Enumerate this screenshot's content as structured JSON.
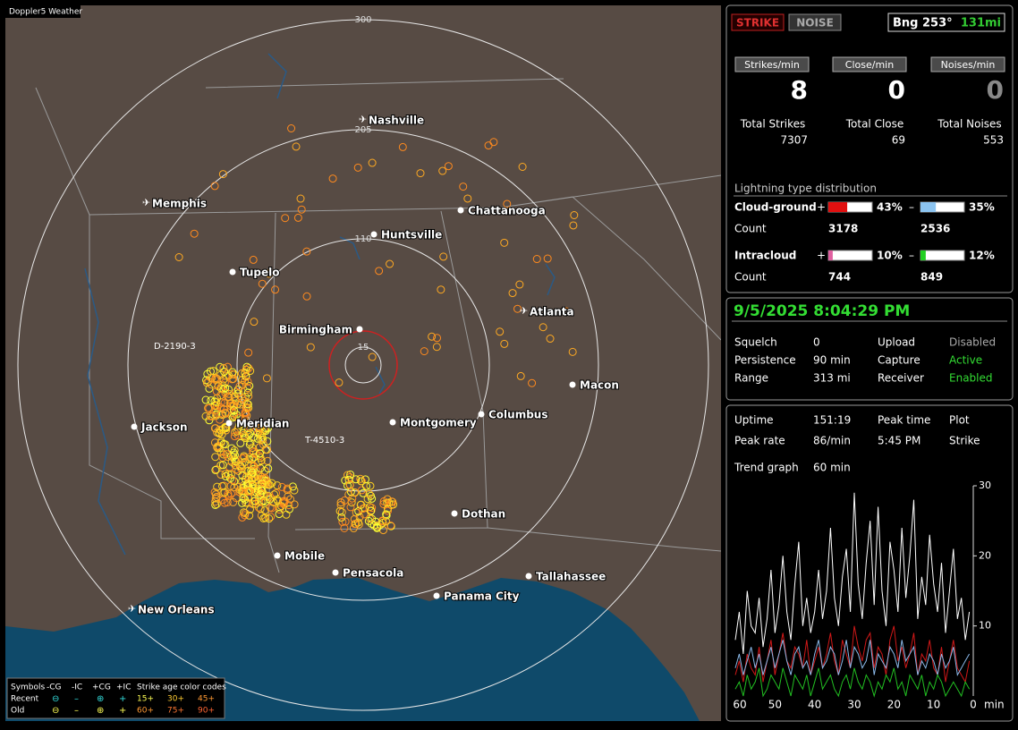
{
  "app_title": "Doppler5 Weather",
  "map": {
    "ring_labels": [
      300,
      205,
      110,
      15
    ],
    "cities": [
      "Nashville",
      "Memphis",
      "Chattanooga",
      "Huntsville",
      "Tupelo",
      "Atlanta",
      "Birmingham",
      "Macon",
      "Jackson",
      "Meridian",
      "Montgomery",
      "Columbus",
      "Dothan",
      "Mobile",
      "Pensacola",
      "Tallahassee",
      "Panama City",
      "New Orleans"
    ],
    "track_labels": [
      "D-2190-3",
      "T-4510-3"
    ],
    "legend": {
      "symbols_label": "Symbols",
      "symbol_headers": [
        "-CG",
        "-IC",
        "+CG",
        "+IC"
      ],
      "age_label": "Strike age color codes",
      "rows": [
        {
          "label": "Recent",
          "ages": [
            "15+",
            "30+",
            "45+"
          ]
        },
        {
          "label": "Old",
          "ages": [
            "60+",
            "75+",
            "90+"
          ]
        }
      ]
    }
  },
  "status": {
    "modes": [
      "STRIKE",
      "NOISE"
    ],
    "bearing": "Bng 253°",
    "distance": "131mi",
    "rates": [
      {
        "label": "Strikes/min",
        "value": 8,
        "total_label": "Total Strikes",
        "total": 7307
      },
      {
        "label": "Close/min",
        "value": 0,
        "total_label": "Total Close",
        "total": 69
      },
      {
        "label": "Noises/min",
        "value": 0,
        "total_label": "Total Noises",
        "total": 553
      }
    ],
    "distribution": {
      "title": "Lightning type distribution",
      "count_label": "Count",
      "rows": [
        {
          "label": "Cloud-ground",
          "pos_sign": "+",
          "pos_pct": 43,
          "pos_pct_label": "43%",
          "neg_sign": "–",
          "neg_pct": 35,
          "neg_pct_label": "35%",
          "pos_count": 3178,
          "neg_count": 2536
        },
        {
          "label": "Intracloud",
          "pos_sign": "+",
          "pos_pct": 10,
          "pos_pct_label": "10%",
          "neg_sign": "–",
          "neg_pct": 12,
          "neg_pct_label": "12%",
          "pos_count": 744,
          "neg_count": 849
        }
      ]
    }
  },
  "clock": {
    "datetime": "9/5/2025 8:04:29 PM",
    "settings": [
      {
        "label": "Squelch",
        "value": "0"
      },
      {
        "label": "Persistence",
        "value": "90 min"
      },
      {
        "label": "Range",
        "value": "313 mi"
      },
      {
        "label": "Upload",
        "value": "Disabled"
      },
      {
        "label": "Capture",
        "value": "Active"
      },
      {
        "label": "Receiver",
        "value": "Enabled"
      }
    ]
  },
  "stats": {
    "uptime": {
      "label": "Uptime",
      "value": "151:19"
    },
    "peak_rate": {
      "label": "Peak rate",
      "value": "86/min"
    },
    "peak_time": {
      "label": "Peak time",
      "value": "5:45 PM"
    },
    "plot": {
      "label": "Plot",
      "value": "Strike"
    },
    "trend": {
      "label": "Trend graph",
      "value": "60 min"
    }
  },
  "chart_data": {
    "type": "line",
    "x_unit": "min",
    "x": [
      60,
      59,
      58,
      57,
      56,
      55,
      54,
      53,
      52,
      51,
      50,
      49,
      48,
      47,
      46,
      45,
      44,
      43,
      42,
      41,
      40,
      39,
      38,
      37,
      36,
      35,
      34,
      33,
      32,
      31,
      30,
      29,
      28,
      27,
      26,
      25,
      24,
      23,
      22,
      21,
      20,
      19,
      18,
      17,
      16,
      15,
      14,
      13,
      12,
      11,
      10,
      9,
      8,
      7,
      6,
      5,
      4,
      3,
      2,
      1
    ],
    "xlim": [
      60,
      0
    ],
    "xticks": [
      60,
      50,
      40,
      30,
      20,
      10,
      0
    ],
    "ylim": [
      0,
      30
    ],
    "yticks": [
      10,
      20,
      30
    ],
    "series": [
      {
        "color": "#ffffff",
        "values": [
          8,
          12,
          6,
          15,
          10,
          9,
          14,
          7,
          11,
          18,
          9,
          13,
          20,
          12,
          8,
          16,
          22,
          10,
          14,
          9,
          12,
          18,
          11,
          15,
          24,
          14,
          10,
          17,
          21,
          12,
          29,
          16,
          11,
          19,
          25,
          13,
          27,
          15,
          10,
          22,
          18,
          12,
          24,
          14,
          20,
          28,
          11,
          17,
          13,
          23,
          16,
          12,
          19,
          9,
          15,
          21,
          11,
          14,
          8,
          12
        ]
      },
      {
        "color": "#d01818",
        "values": [
          3,
          5,
          2,
          6,
          4,
          3,
          7,
          2,
          5,
          8,
          3,
          6,
          9,
          5,
          4,
          7,
          6,
          4,
          8,
          3,
          5,
          7,
          4,
          6,
          9,
          5,
          3,
          8,
          6,
          4,
          10,
          7,
          5,
          8,
          9,
          4,
          7,
          6,
          3,
          8,
          10,
          5,
          7,
          4,
          6,
          9,
          3,
          6,
          5,
          8,
          4,
          3,
          7,
          2,
          5,
          8,
          4,
          3,
          2,
          5
        ]
      },
      {
        "color": "#8ab8e8",
        "values": [
          4,
          6,
          3,
          5,
          7,
          4,
          6,
          3,
          5,
          7,
          4,
          6,
          8,
          5,
          3,
          6,
          7,
          4,
          5,
          3,
          6,
          8,
          4,
          5,
          7,
          6,
          3,
          5,
          8,
          4,
          7,
          6,
          4,
          5,
          8,
          3,
          6,
          5,
          4,
          7,
          6,
          4,
          8,
          5,
          6,
          7,
          3,
          5,
          4,
          6,
          5,
          3,
          6,
          4,
          5,
          7,
          3,
          4,
          5,
          6
        ]
      },
      {
        "color": "#22c022",
        "values": [
          1,
          2,
          0,
          3,
          1,
          2,
          4,
          0,
          1,
          3,
          2,
          1,
          4,
          2,
          0,
          3,
          2,
          1,
          3,
          0,
          2,
          4,
          1,
          2,
          3,
          1,
          0,
          2,
          3,
          1,
          4,
          2,
          1,
          3,
          2,
          0,
          2,
          1,
          3,
          2,
          4,
          1,
          2,
          0,
          3,
          2,
          1,
          3,
          0,
          2,
          1,
          3,
          2,
          0,
          1,
          2,
          1,
          0,
          2,
          1
        ]
      }
    ]
  }
}
